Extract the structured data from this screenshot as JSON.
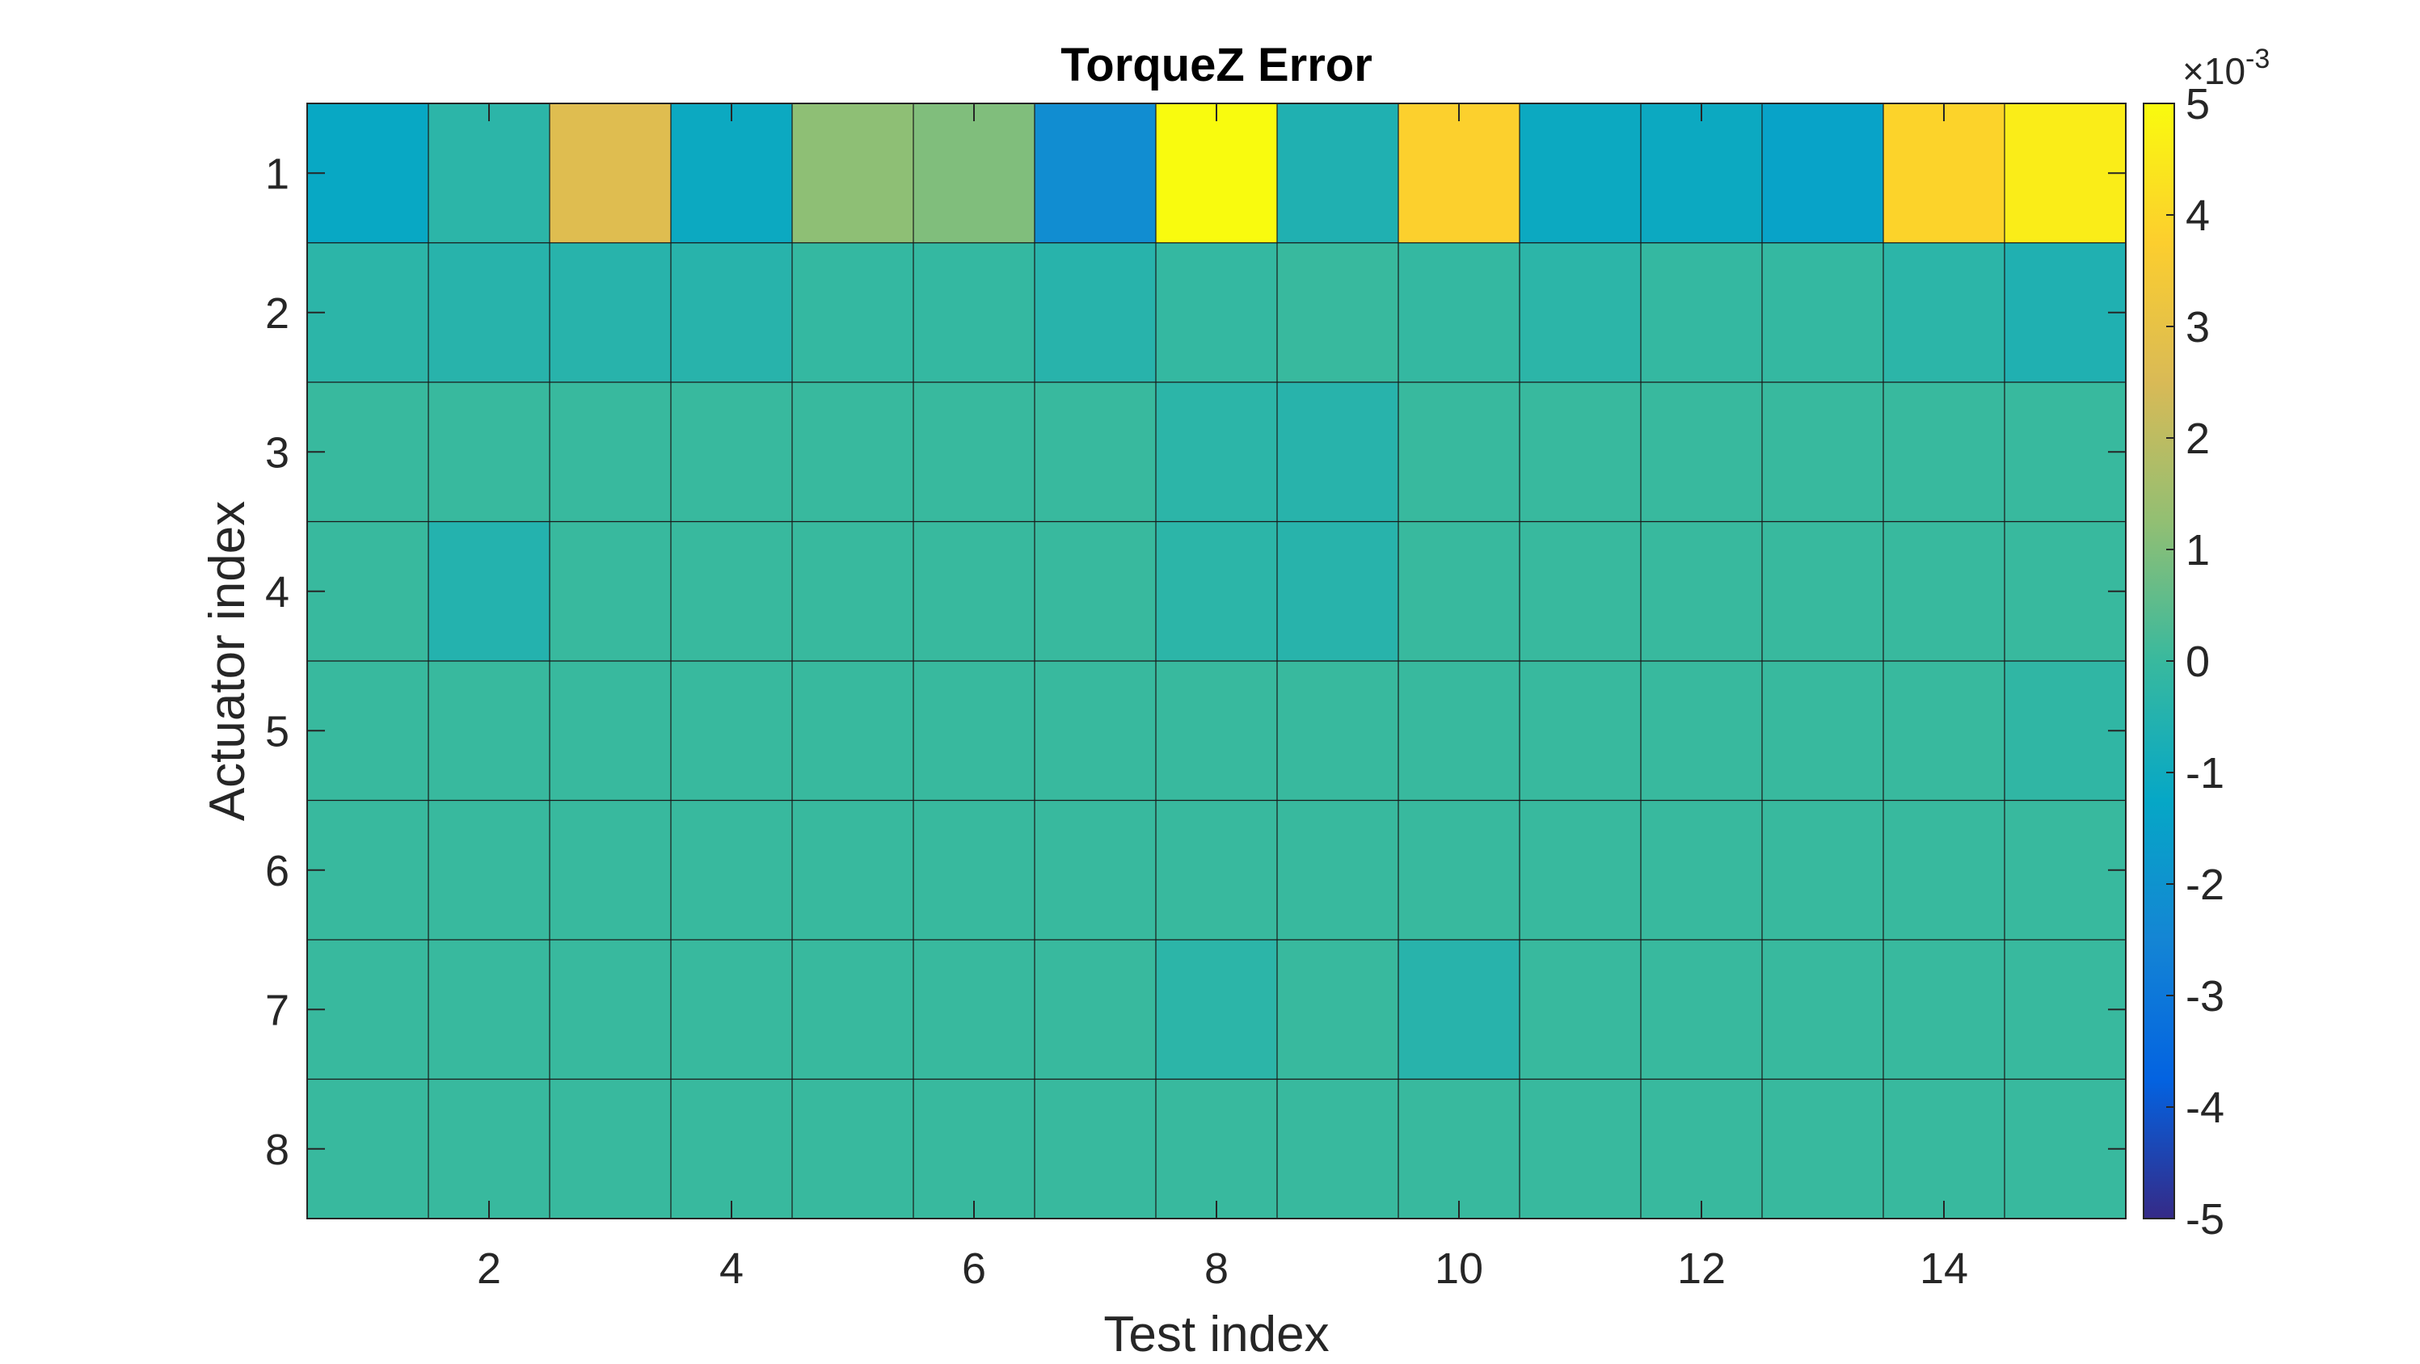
{
  "chart_data": {
    "type": "heatmap",
    "title": "TorqueZ Error",
    "xlabel": "Test index",
    "ylabel": "Actuator index",
    "x": [
      1,
      2,
      3,
      4,
      5,
      6,
      7,
      8,
      9,
      10,
      11,
      12,
      13,
      14,
      15
    ],
    "y": [
      1,
      2,
      3,
      4,
      5,
      6,
      7,
      8
    ],
    "xticks": [
      2,
      4,
      6,
      8,
      10,
      12,
      14
    ],
    "yticks": [
      1,
      2,
      3,
      4,
      5,
      6,
      7,
      8
    ],
    "xlim": [
      0.5,
      15.5
    ],
    "ylim": [
      0.5,
      8.5
    ],
    "colormap": "parula",
    "clim": [
      -0.005,
      0.005
    ],
    "colorbar": {
      "ticks": [
        -5,
        -4,
        -3,
        -2,
        -1,
        0,
        1,
        2,
        3,
        4,
        5
      ],
      "tick_labels": [
        "-5",
        "-4",
        "-3",
        "-2",
        "-1",
        "0",
        "1",
        "2",
        "3",
        "4",
        "5"
      ],
      "multiplier_base": "10",
      "multiplier_exp": "-3",
      "position": "right"
    },
    "grid": true,
    "z_units_scale": 0.001,
    "values": [
      [
        -1.2,
        -0.3,
        2.7,
        -1.1,
        1.2,
        1.0,
        -2.2,
        5.0,
        -0.6,
        3.8,
        -1.1,
        -1.1,
        -1.4,
        3.9,
        4.6
      ],
      [
        -0.3,
        -0.4,
        -0.4,
        -0.4,
        -0.1,
        -0.1,
        -0.4,
        -0.1,
        0.0,
        -0.1,
        -0.3,
        -0.1,
        -0.1,
        -0.3,
        -0.6
      ],
      [
        0.0,
        0.0,
        0.0,
        0.0,
        0.0,
        0.0,
        0.0,
        -0.3,
        -0.4,
        0.0,
        0.0,
        0.0,
        0.0,
        0.0,
        0.0
      ],
      [
        0.0,
        -0.5,
        0.0,
        0.0,
        0.0,
        0.0,
        0.0,
        -0.3,
        -0.4,
        0.0,
        0.0,
        0.0,
        0.0,
        0.0,
        0.0
      ],
      [
        0.0,
        0.0,
        0.0,
        0.0,
        0.0,
        0.0,
        0.0,
        0.0,
        0.0,
        0.0,
        0.0,
        0.0,
        0.0,
        0.0,
        -0.2
      ],
      [
        0.0,
        0.0,
        0.0,
        0.0,
        0.0,
        0.0,
        0.0,
        0.0,
        0.0,
        0.0,
        0.0,
        0.0,
        0.0,
        0.0,
        0.0
      ],
      [
        0.0,
        0.0,
        0.0,
        0.0,
        0.0,
        0.0,
        0.0,
        -0.3,
        0.0,
        -0.4,
        0.0,
        0.0,
        0.0,
        0.0,
        0.0
      ],
      [
        0.0,
        0.0,
        0.0,
        0.0,
        0.0,
        0.0,
        0.0,
        0.0,
        0.0,
        0.0,
        0.0,
        0.0,
        0.0,
        0.0,
        0.0
      ]
    ]
  }
}
